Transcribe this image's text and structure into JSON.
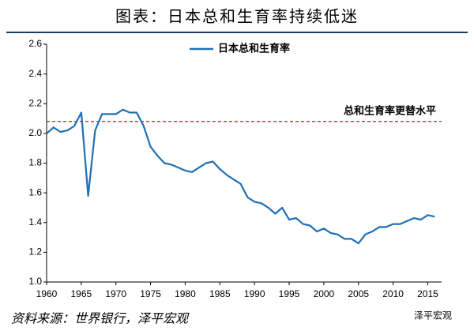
{
  "chart_data": {
    "type": "line",
    "title": "图表：日本总和生育率持续低迷",
    "source": "资料来源：世界银行，泽平宏观",
    "watermark": "泽平宏观",
    "x": [
      1960,
      1961,
      1962,
      1963,
      1964,
      1965,
      1966,
      1967,
      1968,
      1969,
      1970,
      1971,
      1972,
      1973,
      1974,
      1975,
      1976,
      1977,
      1978,
      1979,
      1980,
      1981,
      1982,
      1983,
      1984,
      1985,
      1986,
      1987,
      1988,
      1989,
      1990,
      1991,
      1992,
      1993,
      1994,
      1995,
      1996,
      1997,
      1998,
      1999,
      2000,
      2001,
      2002,
      2003,
      2004,
      2005,
      2006,
      2007,
      2008,
      2009,
      2010,
      2011,
      2012,
      2013,
      2014,
      2015,
      2016
    ],
    "series": [
      {
        "name": "日本总和生育率",
        "color": "#1f6fb4",
        "values": [
          2.0,
          2.04,
          2.01,
          2.02,
          2.05,
          2.14,
          1.58,
          2.02,
          2.13,
          2.13,
          2.13,
          2.16,
          2.14,
          2.14,
          2.05,
          1.91,
          1.85,
          1.8,
          1.79,
          1.77,
          1.75,
          1.74,
          1.77,
          1.8,
          1.81,
          1.76,
          1.72,
          1.69,
          1.66,
          1.57,
          1.54,
          1.53,
          1.5,
          1.46,
          1.5,
          1.42,
          1.43,
          1.39,
          1.38,
          1.34,
          1.36,
          1.33,
          1.32,
          1.29,
          1.29,
          1.26,
          1.32,
          1.34,
          1.37,
          1.37,
          1.39,
          1.39,
          1.41,
          1.43,
          1.42,
          1.45,
          1.44
        ]
      }
    ],
    "reference_line": {
      "label": "总和生育率更替水平",
      "value": 2.08,
      "color": "#c00000"
    },
    "xlim": [
      1960,
      2017
    ],
    "xticks": [
      1960,
      1965,
      1970,
      1975,
      1980,
      1985,
      1990,
      1995,
      2000,
      2005,
      2010,
      2015
    ],
    "ylim": [
      1.0,
      2.6
    ],
    "yticks": [
      {
        "value": 1.0,
        "label": "1.0"
      },
      1.2,
      1.4,
      1.6,
      1.8,
      {
        "value": 2.0,
        "label": "2.0"
      },
      2.2,
      2.4,
      2.6
    ],
    "legend": "top"
  }
}
